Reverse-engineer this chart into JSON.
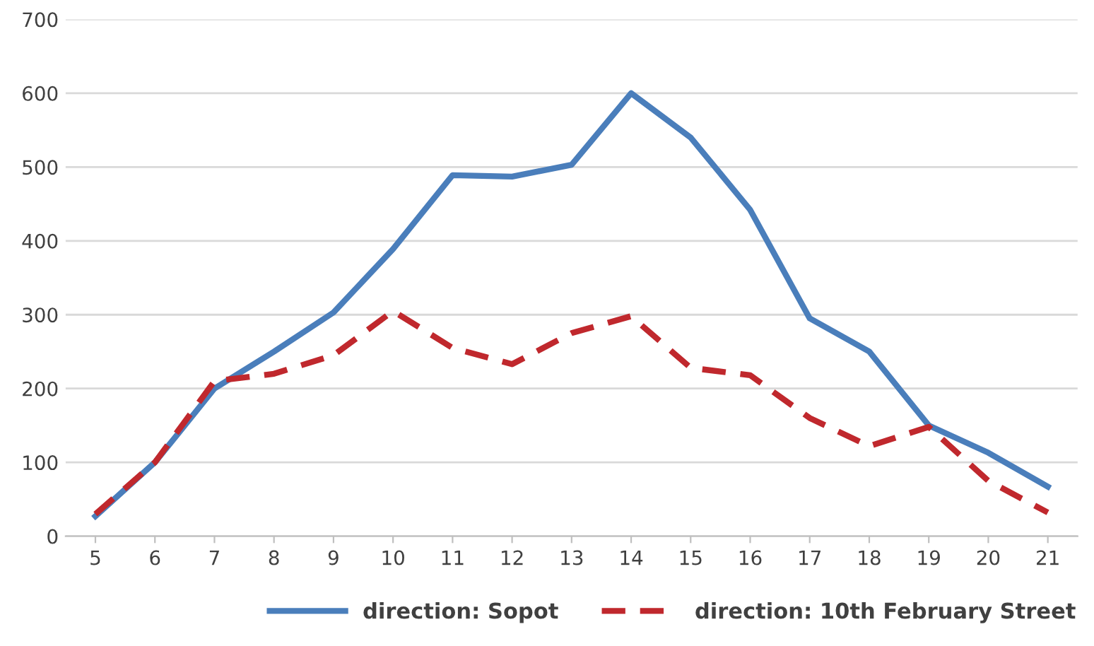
{
  "chart_data": {
    "type": "line",
    "categories": [
      "5",
      "6",
      "7",
      "8",
      "9",
      "10",
      "11",
      "12",
      "13",
      "14",
      "15",
      "16",
      "17",
      "18",
      "19",
      "20",
      "21"
    ],
    "series": [
      {
        "name": "direction: Sopot",
        "color": "#4a7ebb",
        "line_style": "solid",
        "values": [
          27,
          100,
          200,
          250,
          303,
          389,
          489,
          487,
          503,
          600,
          540,
          442,
          295,
          250,
          150,
          113,
          67
        ]
      },
      {
        "name": "direction: 10th February Street",
        "color": "#c0282d",
        "line_style": "dashed",
        "values": [
          30,
          100,
          210,
          220,
          245,
          305,
          255,
          233,
          275,
          298,
          228,
          218,
          160,
          122,
          148,
          75,
          32
        ]
      }
    ],
    "ylim": [
      0,
      700
    ],
    "yticks": [
      0,
      100,
      200,
      300,
      400,
      500,
      600,
      700
    ],
    "grid": "y",
    "legend": "bottom",
    "marker": "none"
  }
}
